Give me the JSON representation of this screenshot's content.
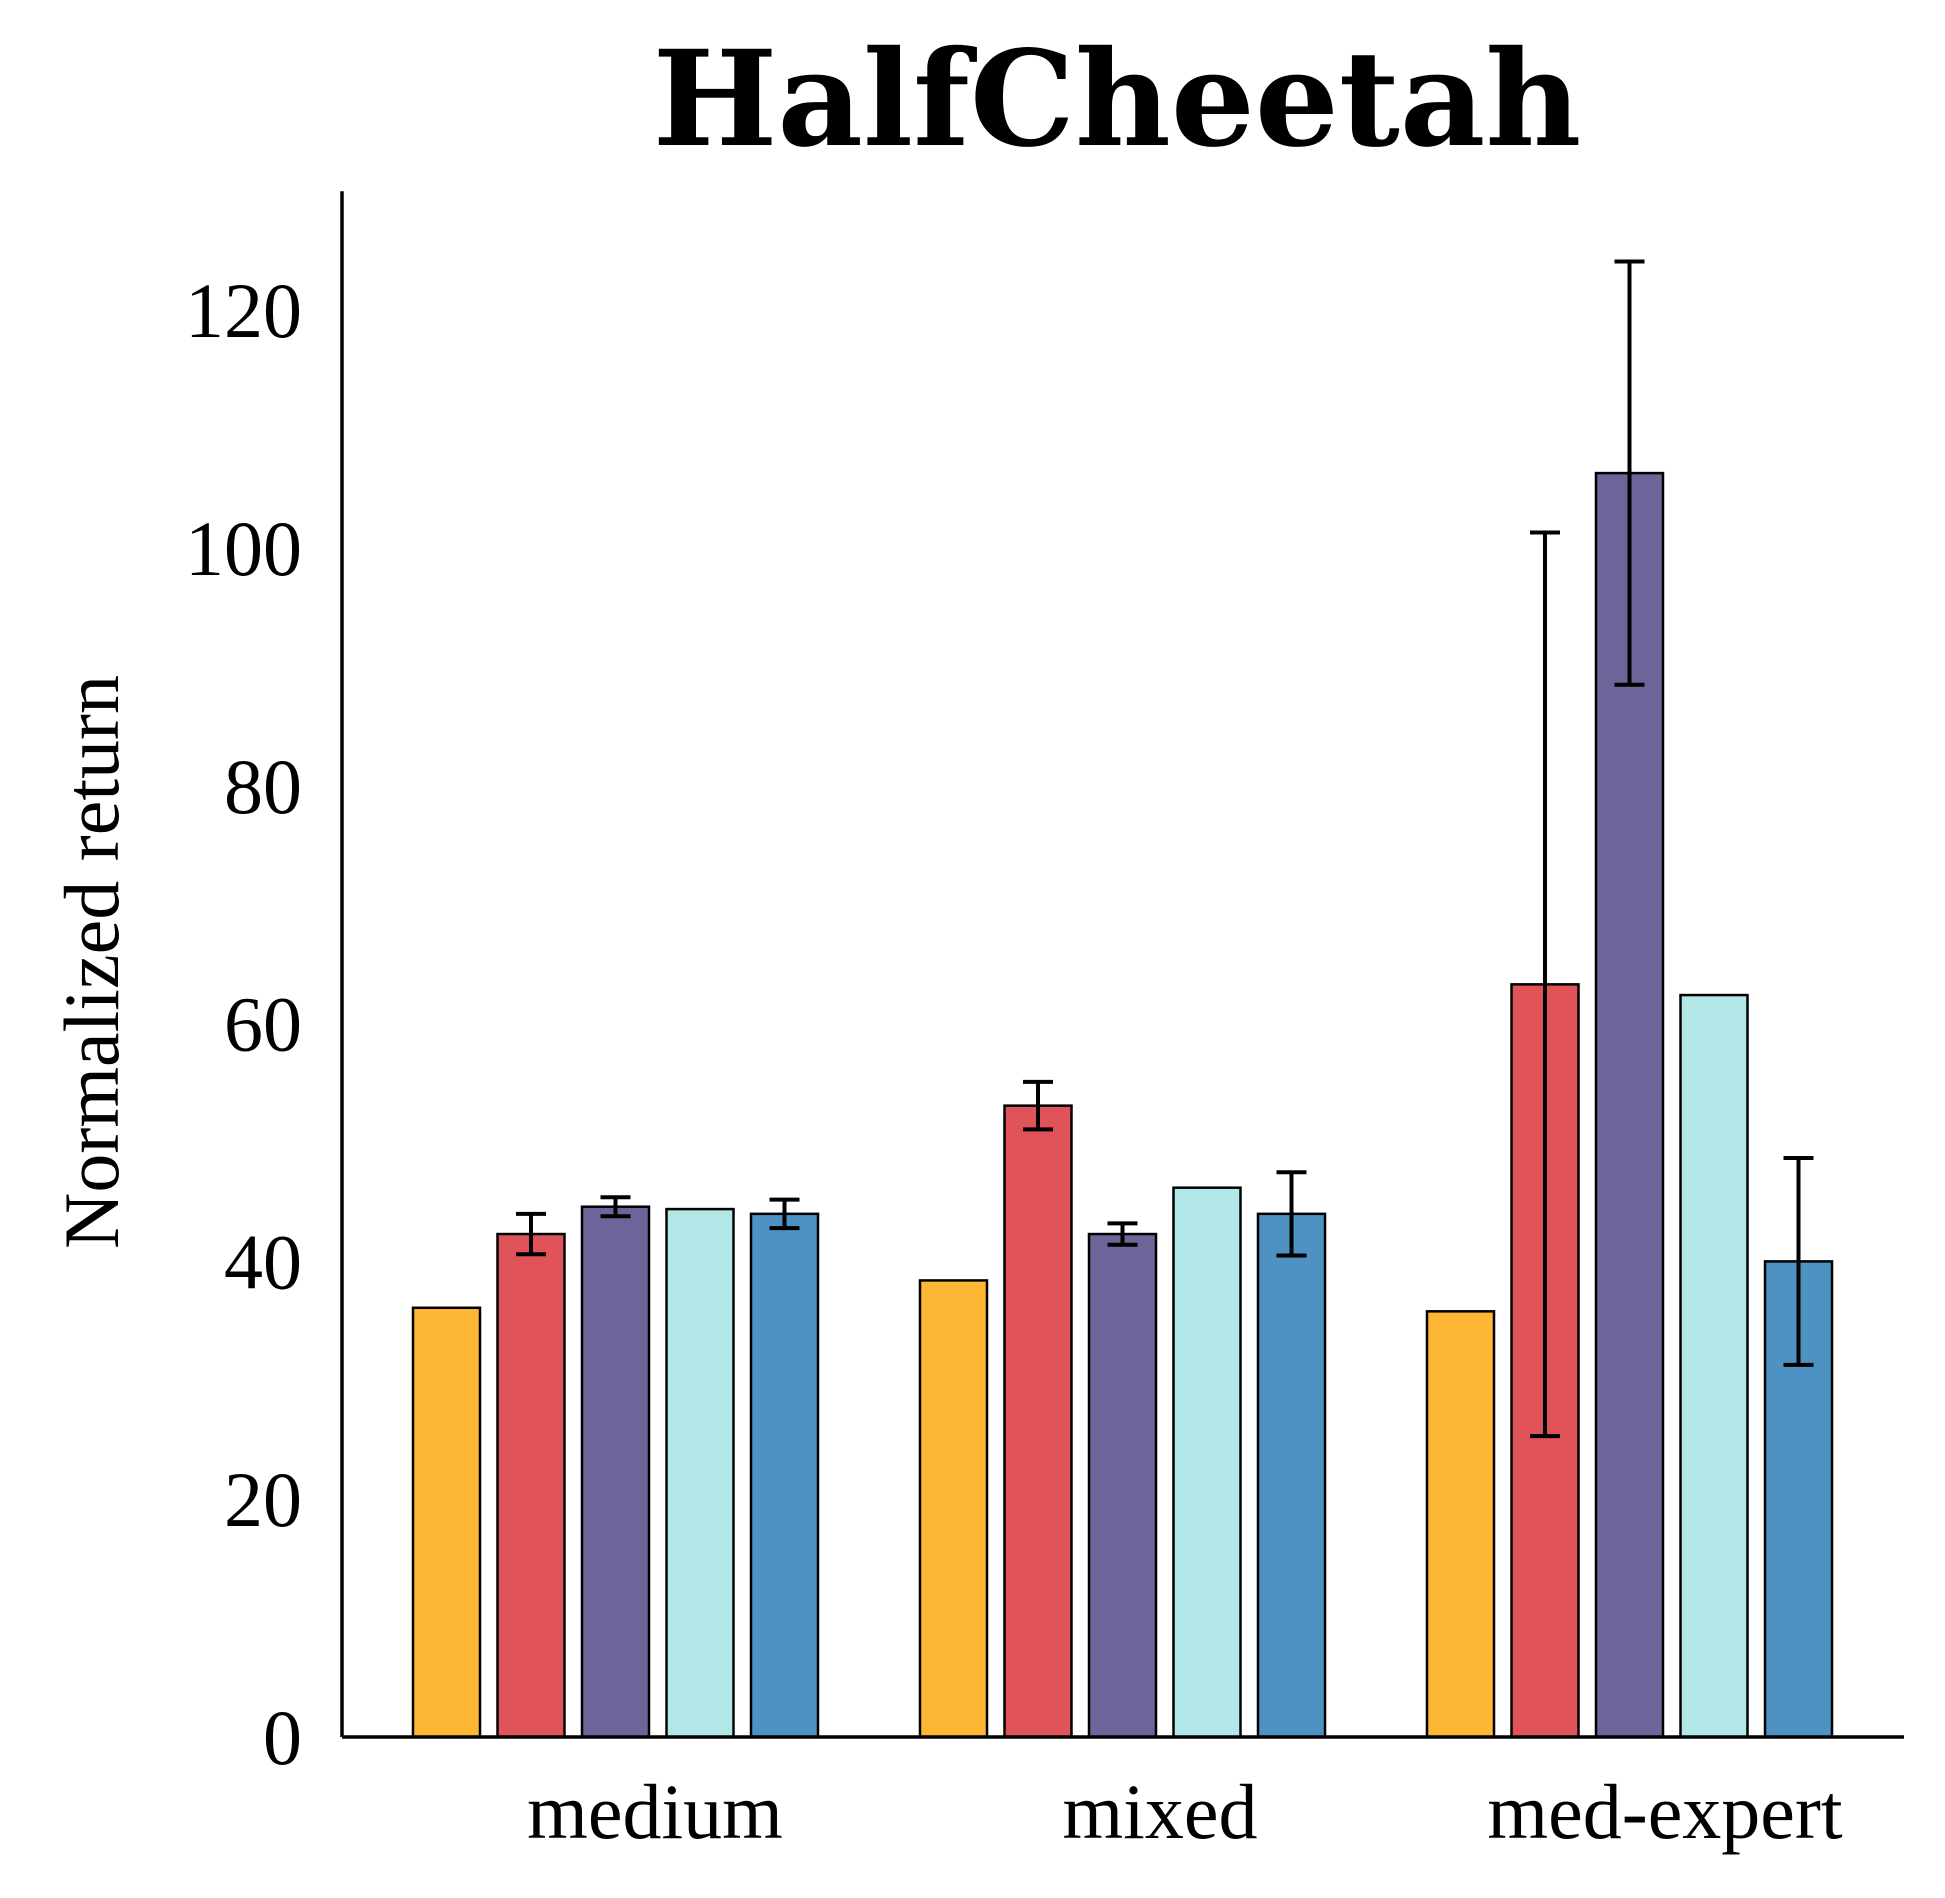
{
  "chart_data": {
    "type": "bar",
    "title": "HalfCheetah",
    "xlabel": "",
    "ylabel": "Normalized return",
    "ylim": [
      0,
      130
    ],
    "yticks": [
      0,
      20,
      40,
      60,
      80,
      100,
      120
    ],
    "categories": [
      "medium",
      "mixed",
      "med-expert"
    ],
    "grid": false,
    "legend": "none",
    "series": [
      {
        "color": "#FDB735",
        "values": [
          36.1,
          38.4,
          35.8
        ],
        "errors": [
          null,
          null,
          null
        ]
      },
      {
        "color": "#E05459",
        "values": [
          42.3,
          53.1,
          63.3
        ],
        "errors": [
          1.7,
          2.0,
          38.0
        ]
      },
      {
        "color": "#6C6599",
        "values": [
          44.6,
          42.3,
          106.3
        ],
        "errors": [
          0.8,
          0.9,
          17.8
        ]
      },
      {
        "color": "#B1E8E7",
        "values": [
          44.4,
          46.2,
          62.4
        ],
        "errors": [
          null,
          null,
          null
        ]
      },
      {
        "color": "#4D92C3",
        "values": [
          44.0,
          44.0,
          40.0
        ],
        "errors": [
          1.2,
          3.5,
          8.7
        ]
      }
    ]
  }
}
